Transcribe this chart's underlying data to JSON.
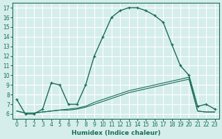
{
  "xlabel": "Humidex (Indice chaleur)",
  "background_color": "#d5eeec",
  "grid_color": "#ffffff",
  "line_color": "#1a6b5a",
  "xlim": [
    -0.5,
    23.5
  ],
  "ylim": [
    5.5,
    17.5
  ],
  "xticks": [
    0,
    1,
    2,
    3,
    4,
    5,
    6,
    7,
    8,
    9,
    10,
    11,
    12,
    13,
    14,
    15,
    16,
    17,
    18,
    19,
    20,
    21,
    22,
    23
  ],
  "yticks": [
    6,
    7,
    8,
    9,
    10,
    11,
    12,
    13,
    14,
    15,
    16,
    17
  ],
  "series1_x": [
    0,
    1,
    2,
    3,
    4,
    5,
    6,
    7,
    8,
    9,
    10,
    11,
    12,
    13,
    14,
    15,
    16,
    17,
    18,
    19,
    20,
    21,
    22,
    23
  ],
  "series1_y": [
    7.5,
    6.0,
    6.0,
    6.5,
    9.2,
    9.0,
    7.0,
    7.0,
    9.0,
    12.0,
    14.0,
    16.0,
    16.7,
    17.0,
    17.0,
    16.7,
    16.2,
    15.5,
    13.2,
    11.0,
    10.0,
    6.8,
    7.0,
    6.5
  ],
  "series2_x": [
    0,
    1,
    2,
    3,
    4,
    5,
    6,
    7,
    8,
    9,
    10,
    11,
    12,
    13,
    14,
    15,
    16,
    17,
    18,
    19,
    20,
    21,
    22,
    23
  ],
  "series2_y": [
    6.3,
    6.1,
    6.1,
    6.2,
    6.3,
    6.4,
    6.5,
    6.6,
    6.8,
    7.2,
    7.5,
    7.8,
    8.1,
    8.4,
    8.6,
    8.8,
    9.0,
    9.2,
    9.4,
    9.6,
    9.8,
    6.3,
    6.2,
    6.2
  ],
  "series3_x": [
    0,
    1,
    2,
    3,
    4,
    5,
    6,
    7,
    8,
    9,
    10,
    11,
    12,
    13,
    14,
    15,
    16,
    17,
    18,
    19,
    20,
    21,
    22,
    23
  ],
  "series3_y": [
    6.3,
    6.1,
    6.1,
    6.2,
    6.3,
    6.4,
    6.4,
    6.5,
    6.7,
    7.0,
    7.3,
    7.6,
    7.9,
    8.2,
    8.4,
    8.6,
    8.8,
    9.0,
    9.2,
    9.4,
    9.6,
    6.3,
    6.2,
    6.2
  ]
}
